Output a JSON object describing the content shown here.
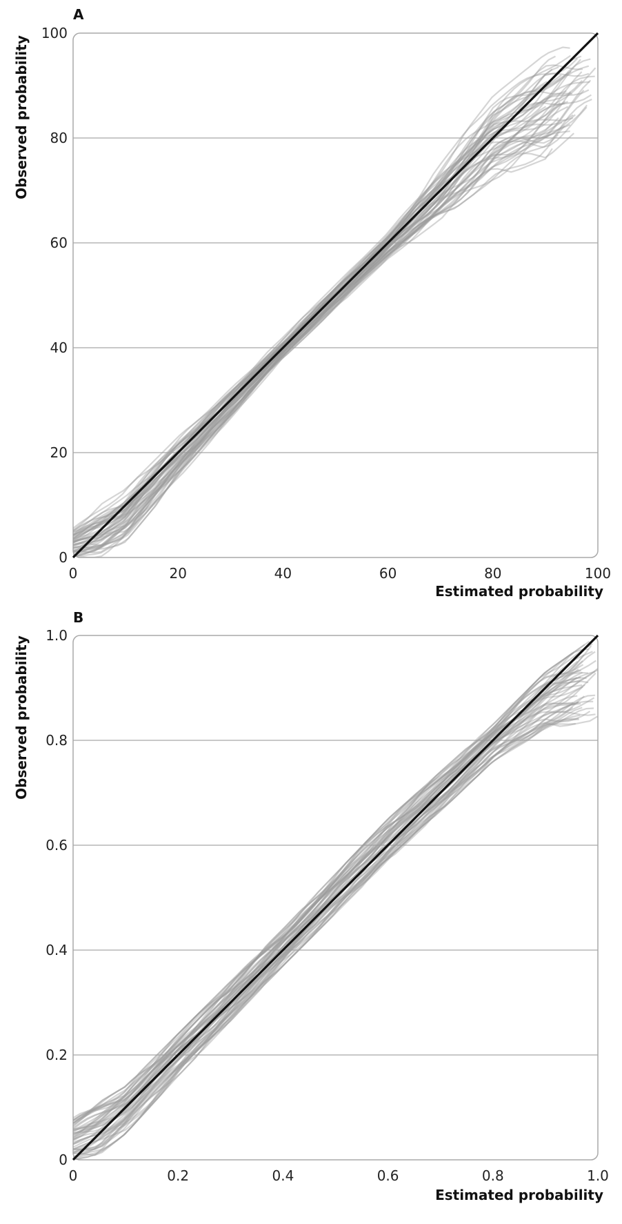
{
  "chart_data": [
    {
      "panel_label": "A",
      "type": "line",
      "xlabel": "Estimated probability",
      "ylabel": "Observed probability",
      "xlim": [
        0,
        100
      ],
      "ylim": [
        0,
        100
      ],
      "x_ticks": [
        "0",
        "20",
        "40",
        "60",
        "80",
        "100"
      ],
      "y_ticks": [
        "0",
        "20",
        "40",
        "60",
        "80",
        "100"
      ],
      "y_tick_values": [
        0,
        20,
        40,
        60,
        80,
        100
      ],
      "grid": "horizontal",
      "series": [
        {
          "role": "reference",
          "color": "#111111",
          "x": [
            0,
            100
          ],
          "y": [
            0,
            100
          ]
        },
        {
          "role": "calibration-curves",
          "color": "#9a9a9a",
          "count": 50,
          "x_start": 0,
          "x_end_range": [
            90,
            100
          ],
          "y_at_x": {
            "x": [
              0,
              5,
              10,
              20,
              40,
              60,
              80,
              90,
              100
            ],
            "y_low": [
              0,
              0,
              3,
              15,
              38,
              57,
              72,
              76,
              85
            ],
            "y_high": [
              6,
              10,
              13,
              23,
              42,
              62,
              88,
              96,
              100
            ]
          }
        }
      ]
    },
    {
      "panel_label": "B",
      "type": "line",
      "xlabel": "Estimated probability",
      "ylabel": "Observed probability",
      "xlim": [
        0,
        1.0
      ],
      "ylim": [
        0,
        1.0
      ],
      "x_ticks": [
        "0",
        "0.2",
        "0.4",
        "0.6",
        "0.8",
        "1.0"
      ],
      "y_ticks": [
        "0",
        "0.2",
        "0.4",
        "0.6",
        "0.8",
        "1.0"
      ],
      "y_tick_values": [
        0,
        0.2,
        0.4,
        0.6,
        0.8,
        1.0
      ],
      "grid": "horizontal",
      "series": [
        {
          "role": "reference",
          "color": "#111111",
          "x": [
            0,
            1.0
          ],
          "y": [
            0,
            1.0
          ]
        },
        {
          "role": "calibration-curves",
          "color": "#9a9a9a",
          "count": 50,
          "x_start": 0,
          "x_end_range": [
            0.95,
            1.0
          ],
          "y_at_x": {
            "x": [
              0,
              0.05,
              0.1,
              0.2,
              0.4,
              0.6,
              0.8,
              0.9,
              1.0
            ],
            "y_low": [
              0,
              0.01,
              0.05,
              0.16,
              0.37,
              0.57,
              0.76,
              0.82,
              0.84
            ],
            "y_high": [
              0.08,
              0.11,
              0.14,
              0.24,
              0.44,
              0.65,
              0.83,
              0.93,
              1.0
            ]
          }
        }
      ]
    }
  ]
}
